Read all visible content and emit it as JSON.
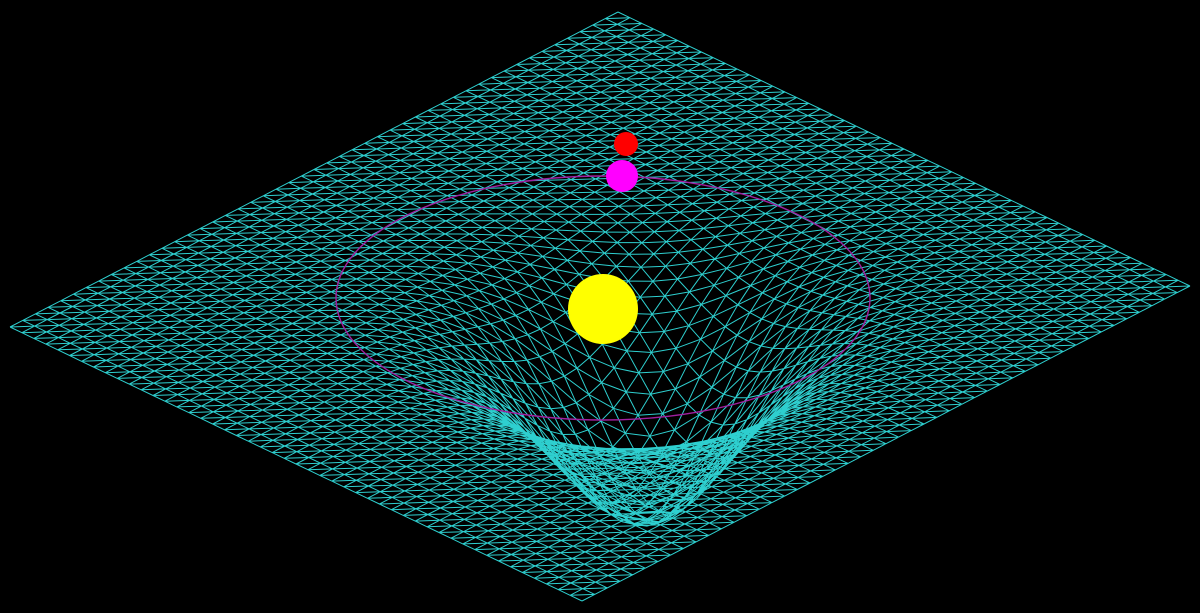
{
  "scene": {
    "background_color": "#000000",
    "mesh": {
      "color": "#33e6e6",
      "divisions": 48,
      "triangulated": true,
      "well_depth_units": 0.32,
      "well_width_units": 0.16
    },
    "orbit": {
      "color": "#a020a0"
    },
    "bodies": [
      {
        "id": "sun",
        "color": "#ffff00"
      },
      {
        "id": "planet",
        "color": "#ff00ff"
      },
      {
        "id": "moon",
        "color": "#ff0000"
      }
    ]
  }
}
